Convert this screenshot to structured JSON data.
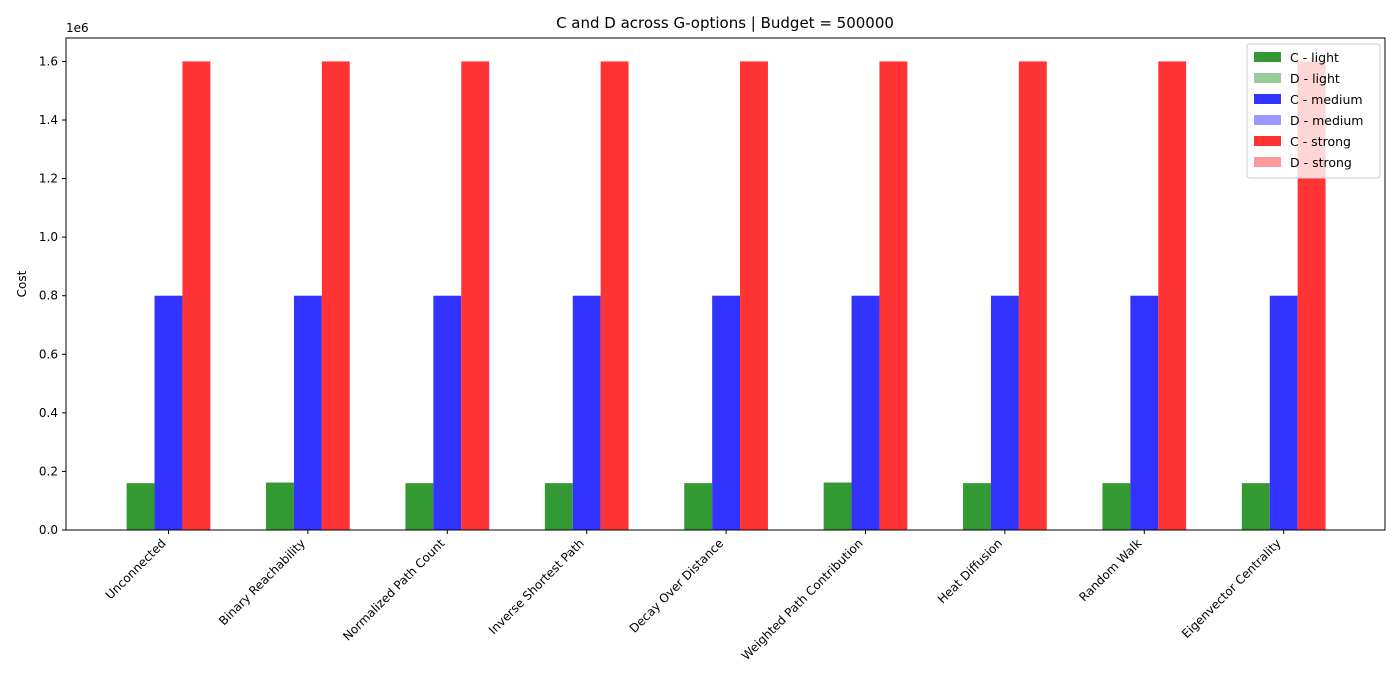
{
  "chart_data": {
    "type": "bar",
    "title": "C and D across G-options | Budget = 500000",
    "xlabel": "",
    "ylabel": "Cost",
    "y_offset_label": "1e6",
    "ylim": [
      0,
      1680000
    ],
    "y_ticks": [
      0,
      200000,
      400000,
      600000,
      800000,
      1000000,
      1200000,
      1400000,
      1600000
    ],
    "y_tick_labels": [
      "0.0",
      "0.2",
      "0.4",
      "0.6",
      "0.8",
      "1.0",
      "1.2",
      "1.4",
      "1.6"
    ],
    "grid": false,
    "legend_position": "top-right",
    "categories": [
      "Unconnected",
      "Binary Reachability",
      "Normalized Path Count",
      "Inverse Shortest Path",
      "Decay Over Distance",
      "Weighted Path Contribution",
      "Heat Diffusion",
      "Random Walk",
      "Eigenvector Centrality"
    ],
    "series": [
      {
        "name": "C - light",
        "color": "#339933",
        "values": [
          160000,
          162000,
          160000,
          160000,
          160000,
          162000,
          160000,
          160000,
          160000
        ]
      },
      {
        "name": "D - light",
        "color": "#99cc99",
        "values": [
          0,
          0,
          0,
          0,
          0,
          0,
          0,
          0,
          0
        ]
      },
      {
        "name": "C - medium",
        "color": "#3333ff",
        "values": [
          800000,
          800000,
          800000,
          800000,
          800000,
          800000,
          800000,
          800000,
          800000
        ]
      },
      {
        "name": "D - medium",
        "color": "#9999ff",
        "values": [
          0,
          0,
          0,
          0,
          0,
          0,
          0,
          0,
          0
        ]
      },
      {
        "name": "C - strong",
        "color": "#ff3333",
        "values": [
          1600000,
          1600000,
          1600000,
          1600000,
          1600000,
          1600000,
          1600000,
          1600000,
          1600000
        ]
      },
      {
        "name": "D - strong",
        "color": "#ff9999",
        "values": [
          0,
          0,
          0,
          0,
          0,
          0,
          0,
          0,
          0
        ]
      }
    ]
  }
}
